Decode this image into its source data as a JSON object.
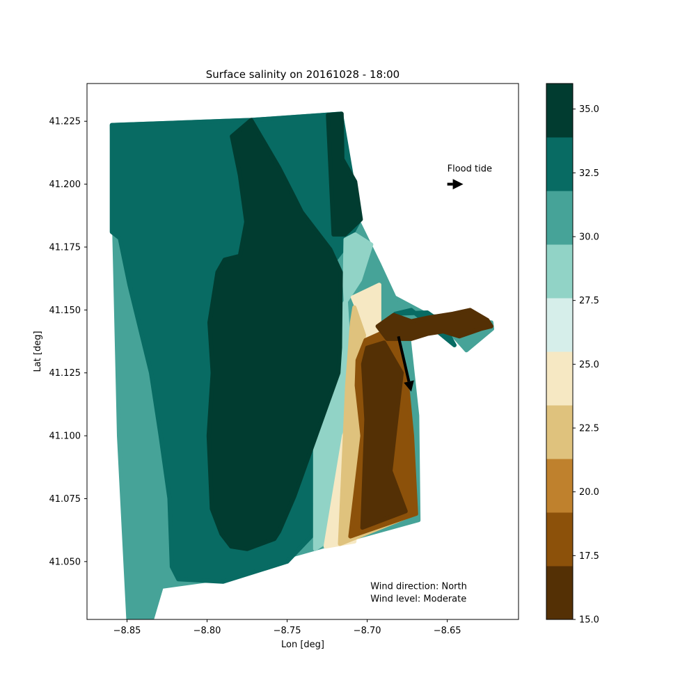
{
  "chart_data": {
    "type": "heatmap",
    "title": "Surface salinity on 20161028 - 18:00",
    "xlabel": "Lon [deg]",
    "ylabel": "Lat [deg]",
    "xlim": [
      -8.875,
      -8.6055
    ],
    "ylim": [
      41.027,
      41.24
    ],
    "xticks": [
      -8.85,
      -8.8,
      -8.75,
      -8.7,
      -8.65
    ],
    "xtick_labels": [
      "−8.85",
      "−8.80",
      "−8.75",
      "−8.70",
      "−8.65"
    ],
    "yticks": [
      41.05,
      41.075,
      41.1,
      41.125,
      41.15,
      41.175,
      41.2,
      41.225
    ],
    "ytick_labels": [
      "41.050",
      "41.075",
      "41.100",
      "41.125",
      "41.150",
      "41.175",
      "41.200",
      "41.225"
    ],
    "grid": false,
    "colorbar": {
      "range": [
        15.0,
        36.0
      ],
      "ticks": [
        15.0,
        17.5,
        20.0,
        22.5,
        25.0,
        27.5,
        30.0,
        32.5,
        35.0
      ],
      "tick_labels": [
        "15.0",
        "17.5",
        "20.0",
        "22.5",
        "25.0",
        "27.5",
        "30.0",
        "32.5",
        "35.0"
      ],
      "levels": [
        {
          "from": 15.0,
          "to": 17.1,
          "color": "#543005"
        },
        {
          "from": 17.1,
          "to": 19.2,
          "color": "#8c510a"
        },
        {
          "from": 19.2,
          "to": 21.3,
          "color": "#bf812d"
        },
        {
          "from": 21.3,
          "to": 23.4,
          "color": "#dfc27d"
        },
        {
          "from": 23.4,
          "to": 25.5,
          "color": "#f6e8c3"
        },
        {
          "from": 25.5,
          "to": 27.6,
          "color": "#d6eeea"
        },
        {
          "from": 27.6,
          "to": 29.7,
          "color": "#91d3c6"
        },
        {
          "from": 29.7,
          "to": 31.8,
          "color": "#46a398"
        },
        {
          "from": 31.8,
          "to": 33.9,
          "color": "#086b63"
        },
        {
          "from": 33.9,
          "to": 36.0,
          "color": "#013c30"
        }
      ]
    },
    "annotations": [
      {
        "text": "Flood tide",
        "x": -8.65,
        "y": 41.205
      },
      {
        "text": "Wind direction: North",
        "x": -8.698,
        "y": 41.039
      },
      {
        "text": "Wind level: Moderate",
        "x": -8.698,
        "y": 41.034
      }
    ],
    "arrows": [
      {
        "name": "flood-tide",
        "from": [
          -8.65,
          41.2
        ],
        "to": [
          -8.64,
          41.2
        ]
      },
      {
        "name": "wind",
        "from": [
          -8.6805,
          41.1395
        ],
        "to": [
          -8.6725,
          41.1175
        ]
      }
    ],
    "regions": [
      {
        "level": 31.0,
        "polygon": [
          [
            -8.8595,
            41.2235
          ],
          [
            -8.855,
            41.1
          ],
          [
            -8.847,
            41.0
          ],
          [
            -8.8285,
            41.04
          ],
          [
            -8.8,
            41.0425
          ],
          [
            -8.7555,
            41.051
          ],
          [
            -8.722,
            41.057
          ],
          [
            -8.668,
            41.0665
          ],
          [
            -8.6688,
            41.108
          ],
          [
            -8.674,
            41.1385
          ],
          [
            -8.6665,
            41.148
          ],
          [
            -8.6225,
            41.145
          ],
          [
            -8.622,
            41.1425
          ],
          [
            -8.638,
            41.134
          ],
          [
            -8.6535,
            41.145
          ],
          [
            -8.683,
            41.155
          ],
          [
            -8.6925,
            41.168
          ],
          [
            -8.7055,
            41.185
          ],
          [
            -8.7164,
            41.228
          ],
          [
            -8.7725,
            41.2255
          ],
          [
            -8.8595,
            41.2235
          ]
        ]
      },
      {
        "level": 32.5,
        "polygon": [
          [
            -8.8595,
            41.2235
          ],
          [
            -8.8595,
            41.181
          ],
          [
            -8.8545,
            41.1785
          ],
          [
            -8.8485,
            41.16
          ],
          [
            -8.835,
            41.125
          ],
          [
            -8.829,
            41.1
          ],
          [
            -8.8235,
            41.075
          ],
          [
            -8.822,
            41.048
          ],
          [
            -8.818,
            41.043
          ],
          [
            -8.79,
            41.042
          ],
          [
            -8.75,
            41.05
          ],
          [
            -8.735,
            41.06
          ],
          [
            -8.728,
            41.1
          ],
          [
            -8.726,
            41.13
          ],
          [
            -8.726,
            41.165
          ],
          [
            -8.714,
            41.175
          ],
          [
            -8.705,
            41.1855
          ],
          [
            -8.7164,
            41.228
          ],
          [
            -8.7725,
            41.2255
          ],
          [
            -8.8595,
            41.2235
          ]
        ]
      },
      {
        "level": 28.5,
        "polygon": [
          [
            -8.7325,
            41.055
          ],
          [
            -8.721,
            41.06
          ],
          [
            -8.7115,
            41.1
          ],
          [
            -8.7115,
            41.135
          ],
          [
            -8.714,
            41.16
          ],
          [
            -8.7135,
            41.178
          ],
          [
            -8.7075,
            41.18
          ],
          [
            -8.6975,
            41.176
          ],
          [
            -8.7045,
            41.162
          ],
          [
            -8.722,
            41.145
          ],
          [
            -8.7325,
            41.1
          ],
          [
            -8.7325,
            41.055
          ]
        ]
      },
      {
        "level": 24.5,
        "polygon": [
          [
            -8.726,
            41.056
          ],
          [
            -8.708,
            41.058
          ],
          [
            -8.7045,
            41.1
          ],
          [
            -8.7045,
            41.135
          ],
          [
            -8.7025,
            41.145
          ],
          [
            -8.709,
            41.155
          ],
          [
            -8.6925,
            41.16
          ],
          [
            -8.6925,
            41.135
          ],
          [
            -8.7145,
            41.1
          ],
          [
            -8.726,
            41.056
          ]
        ]
      },
      {
        "level": 33.0,
        "polygon": [
          [
            -8.6825,
            41.1485
          ],
          [
            -8.6725,
            41.15
          ],
          [
            -8.6455,
            41.136
          ],
          [
            -8.6535,
            41.145
          ],
          [
            -8.6625,
            41.149
          ],
          [
            -8.6825,
            41.1485
          ]
        ]
      },
      {
        "level": 35.0,
        "polygon": [
          [
            -8.7725,
            41.2255
          ],
          [
            -8.755,
            41.2065
          ],
          [
            -8.7465,
            41.196
          ],
          [
            -8.741,
            41.189
          ],
          [
            -8.723,
            41.174
          ],
          [
            -8.7165,
            41.165
          ],
          [
            -8.717,
            41.135
          ],
          [
            -8.718,
            41.125
          ],
          [
            -8.7455,
            41.076
          ],
          [
            -8.755,
            41.062
          ],
          [
            -8.758,
            41.059
          ],
          [
            -8.775,
            41.055
          ],
          [
            -8.785,
            41.056
          ],
          [
            -8.791,
            41.061
          ],
          [
            -8.797,
            41.071
          ],
          [
            -8.799,
            41.1
          ],
          [
            -8.7965,
            41.125
          ],
          [
            -8.7985,
            41.145
          ],
          [
            -8.7935,
            41.165
          ],
          [
            -8.789,
            41.17
          ],
          [
            -8.7795,
            41.1715
          ],
          [
            -8.7755,
            41.185
          ],
          [
            -8.7795,
            41.2035
          ],
          [
            -8.7845,
            41.219
          ],
          [
            -8.7725,
            41.2255
          ]
        ]
      },
      {
        "level": 35.0,
        "polygon": [
          [
            -8.7245,
            41.2275
          ],
          [
            -8.716,
            41.228
          ],
          [
            -8.7155,
            41.21
          ],
          [
            -8.7075,
            41.201
          ],
          [
            -8.704,
            41.186
          ],
          [
            -8.714,
            41.18
          ],
          [
            -8.721,
            41.18
          ],
          [
            -8.7245,
            41.2275
          ]
        ]
      },
      {
        "level": 22.0,
        "polygon": [
          [
            -8.717,
            41.057
          ],
          [
            -8.6725,
            41.0685
          ],
          [
            -8.6845,
            41.112
          ],
          [
            -8.7025,
            41.138
          ],
          [
            -8.702,
            41.14
          ],
          [
            -8.708,
            41.151
          ],
          [
            -8.7095,
            41.145
          ],
          [
            -8.7125,
            41.12
          ],
          [
            -8.717,
            41.057
          ]
        ]
      },
      {
        "level": 18.0,
        "polygon": [
          [
            -8.7105,
            41.06
          ],
          [
            -8.6695,
            41.069
          ],
          [
            -8.672,
            41.1
          ],
          [
            -8.675,
            41.12
          ],
          [
            -8.6825,
            41.1395
          ],
          [
            -8.6905,
            41.141
          ],
          [
            -8.701,
            41.138
          ],
          [
            -8.706,
            41.13
          ],
          [
            -8.7065,
            41.12
          ],
          [
            -8.703,
            41.1
          ],
          [
            -8.7105,
            41.06
          ]
        ]
      },
      {
        "level": 16.0,
        "polygon": [
          [
            -8.703,
            41.0635
          ],
          [
            -8.676,
            41.07
          ],
          [
            -8.6855,
            41.086
          ],
          [
            -8.683,
            41.1
          ],
          [
            -8.6785,
            41.125
          ],
          [
            -8.6895,
            41.137
          ],
          [
            -8.7,
            41.135
          ],
          [
            -8.7025,
            41.1285
          ],
          [
            -8.7005,
            41.1065
          ],
          [
            -8.703,
            41.0635
          ]
        ]
      },
      {
        "level": 16.0,
        "polygon": [
          [
            -8.6935,
            41.1435
          ],
          [
            -8.6835,
            41.148
          ],
          [
            -8.6725,
            41.1455
          ],
          [
            -8.6615,
            41.147
          ],
          [
            -8.6465,
            41.1485
          ],
          [
            -8.6358,
            41.15
          ],
          [
            -8.625,
            41.146
          ],
          [
            -8.6225,
            41.1435
          ],
          [
            -8.629,
            41.1425
          ],
          [
            -8.6425,
            41.1395
          ],
          [
            -8.6525,
            41.1415
          ],
          [
            -8.6625,
            41.1405
          ],
          [
            -8.6725,
            41.1385
          ],
          [
            -8.6875,
            41.1385
          ],
          [
            -8.6935,
            41.1435
          ]
        ]
      }
    ]
  }
}
